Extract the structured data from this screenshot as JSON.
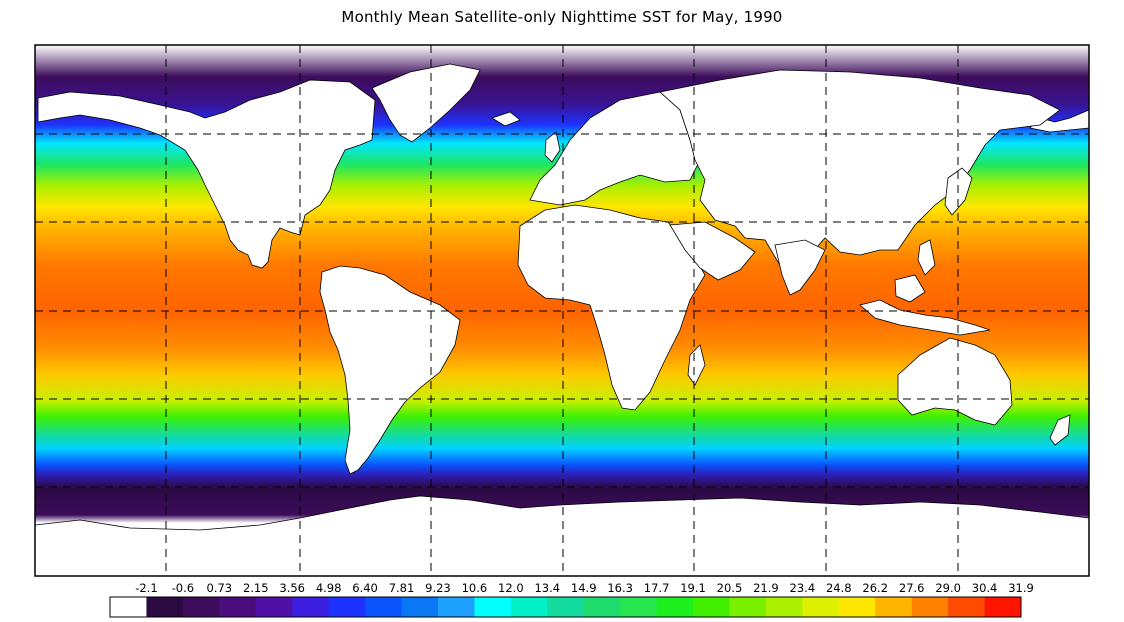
{
  "title": "Monthly Mean Satellite-only Nighttime SST for May, 1990",
  "map": {
    "projection": "equirectangular",
    "lon_range": [
      20,
      380
    ],
    "lat_range": [
      -90,
      90
    ],
    "graticule_style": "dashed",
    "graticule_lon_step": 45,
    "graticule_lat_step": 30,
    "land_color": "#ffffff",
    "sea_ice_color": "#ffffff"
  },
  "colorbar": {
    "labels": [
      "-2.1",
      "-0.6",
      "0.73",
      "2.15",
      "3.56",
      "4.98",
      "6.40",
      "7.81",
      "9.23",
      "10.6",
      "12.0",
      "13.4",
      "14.9",
      "16.3",
      "17.7",
      "19.1",
      "20.5",
      "21.9",
      "23.4",
      "24.8",
      "26.2",
      "27.6",
      "29.0",
      "30.4",
      "31.9"
    ],
    "colors": [
      "#ffffff",
      "#2b0a42",
      "#3d0c5c",
      "#4a0d7e",
      "#5010a8",
      "#3c1ee0",
      "#1e32ff",
      "#0a55ff",
      "#0a78f5",
      "#1ea0ff",
      "#00ffff",
      "#00f0c8",
      "#14dca0",
      "#1edc6e",
      "#28e650",
      "#1ef01e",
      "#41f000",
      "#78f000",
      "#aaf000",
      "#dcf000",
      "#ffe600",
      "#ffb400",
      "#ff8200",
      "#ff4b00",
      "#ff1400"
    ]
  }
}
